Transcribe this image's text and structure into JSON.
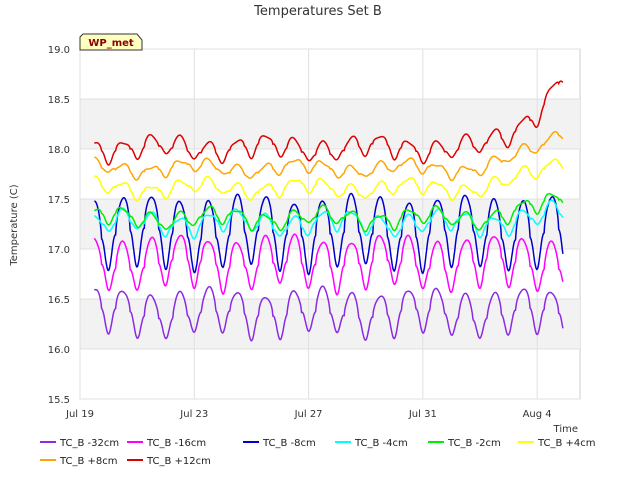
{
  "chart_data": {
    "type": "line",
    "title": "Temperatures Set B",
    "xlabel": "Time",
    "ylabel": "Temperature (C)",
    "badge": "WP_met",
    "ylim": [
      15.5,
      19.0
    ],
    "yticks": [
      "15.5",
      "16.0",
      "16.5",
      "17.0",
      "17.5",
      "18.0",
      "18.5",
      "19.0"
    ],
    "xlim_days": [
      0,
      17.5
    ],
    "xticks": [
      {
        "day": 0,
        "label": "Jul 19"
      },
      {
        "day": 4,
        "label": "Jul 23"
      },
      {
        "day": 8,
        "label": "Jul 27"
      },
      {
        "day": 12,
        "label": "Jul 31"
      },
      {
        "day": 16,
        "label": "Aug 4"
      }
    ],
    "grid": true,
    "legend_position": "bottom",
    "series": [
      {
        "name": "TC_B -32cm",
        "color": "#8a2be2",
        "base": 16.35,
        "amp": 0.22,
        "offset": 0,
        "trend": 0.0
      },
      {
        "name": "TC_B +8cm",
        "color": "#ffa500",
        "base": 17.8,
        "amp": 0.06,
        "offset": 0,
        "trend": 0.4
      },
      {
        "name": "TC_B -16cm",
        "color": "#ff00ff",
        "base": 16.85,
        "amp": 0.25,
        "offset": 0,
        "trend": 0.0
      },
      {
        "name": "TC_B +12cm",
        "color": "#dd0000",
        "base": 18.0,
        "amp": 0.1,
        "offset": 0,
        "trend": 0.7
      },
      {
        "name": "TC_B -8cm",
        "color": "#0000cc",
        "base": 17.15,
        "amp": 0.35,
        "offset": 0,
        "trend": 0.0
      },
      {
        "name": "TC_B -4cm",
        "color": "#00ffff",
        "base": 17.25,
        "amp": 0.1,
        "offset": 0,
        "trend": 0.1
      },
      {
        "name": "TC_B -2cm",
        "color": "#00ee00",
        "base": 17.3,
        "amp": 0.08,
        "offset": 0,
        "trend": 0.2
      },
      {
        "name": "TC_B +4cm",
        "color": "#ffff00",
        "base": 17.6,
        "amp": 0.07,
        "offset": 0,
        "trend": 0.3
      }
    ]
  }
}
